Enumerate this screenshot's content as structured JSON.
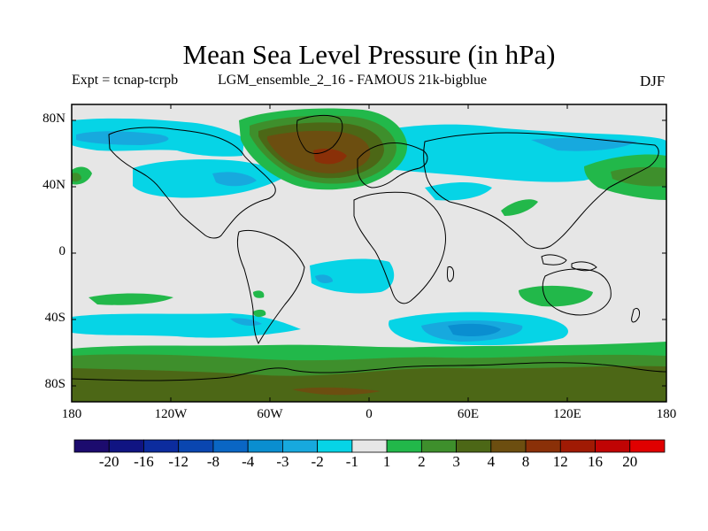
{
  "title": "Mean Sea Level Pressure (in hPa)",
  "subtitle_left": "Expt = tcnap-tcrpb",
  "subtitle_mid": "LGM_ensemble_2_16 - FAMOUS 21k-bigblue",
  "subtitle_right": "DJF",
  "y_ticks": [
    "80N",
    "40N",
    "0",
    "40S",
    "80S"
  ],
  "x_ticks": [
    "180",
    "120W",
    "60W",
    "0",
    "60E",
    "120E",
    "180"
  ],
  "colorbar": {
    "labels": [
      "-20",
      "-16",
      "-12",
      "-8",
      "-4",
      "-3",
      "-2",
      "-1",
      "1",
      "2",
      "3",
      "4",
      "8",
      "12",
      "16",
      "20"
    ],
    "colors": [
      "#1c0b6e",
      "#101482",
      "#0c2c9e",
      "#0a46b0",
      "#0a66c4",
      "#0a8ed0",
      "#17a9de",
      "#06d4e6",
      "#e6e6e6",
      "#22b84a",
      "#3e8f2c",
      "#4c6716",
      "#6c4e10",
      "#8a3008",
      "#a01a04",
      "#c00404",
      "#e00000"
    ]
  },
  "colors": {
    "neutral": "#e6e6e6",
    "coast": "#000000"
  }
}
